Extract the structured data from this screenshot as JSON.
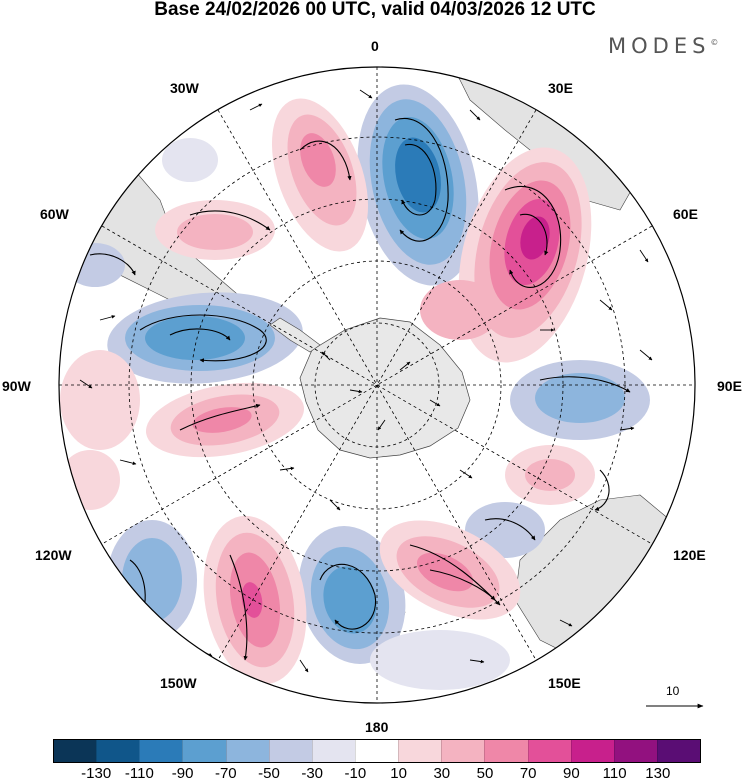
{
  "title": "Base 24/02/2026 00 UTC, valid 04/03/2026 12 UTC",
  "brand": "MODES",
  "brand_mark": "©",
  "longitude_labels": {
    "lon_0": "0",
    "lon_30e": "30E",
    "lon_60e": "60E",
    "lon_90e": "90E",
    "lon_120e": "120E",
    "lon_150e": "150E",
    "lon_180": "180",
    "lon_150w": "150W",
    "lon_120w": "120W",
    "lon_90w": "90W",
    "lon_60w": "60W",
    "lon_30w": "30W"
  },
  "reference_vector": {
    "label": "10"
  },
  "colorbar": {
    "colors": [
      "#0b3557",
      "#10568a",
      "#2b7bb8",
      "#5c9fd0",
      "#8db5dd",
      "#c3cbe4",
      "#e4e4f0",
      "#ffffff",
      "#f8d7dc",
      "#f4b3c1",
      "#ef87a8",
      "#e35099",
      "#c8208c",
      "#92117f",
      "#5a0d74"
    ],
    "ticks": [
      "-130",
      "-110",
      "-90",
      "-70",
      "-50",
      "-30",
      "-10",
      "10",
      "30",
      "50",
      "70",
      "90",
      "110",
      "130"
    ]
  },
  "map_colors": {
    "land": "#e6e6e6",
    "antarctica": "#e8e8e8",
    "outline": "#000000"
  }
}
